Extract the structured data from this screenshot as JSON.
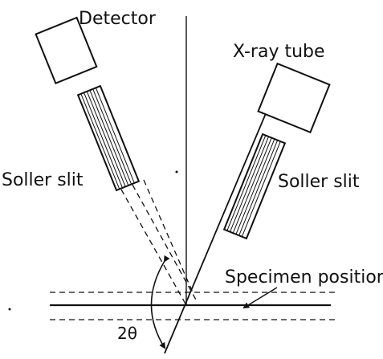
{
  "labels": {
    "detector": "Detector",
    "xray_tube": "X-ray tube",
    "soller_left": "Soller slit",
    "soller_right": "Soller slit",
    "specimen": "Specimen position",
    "angle": "2θ"
  },
  "colors": {
    "ink": "#111111",
    "paper": "#ffffff"
  }
}
